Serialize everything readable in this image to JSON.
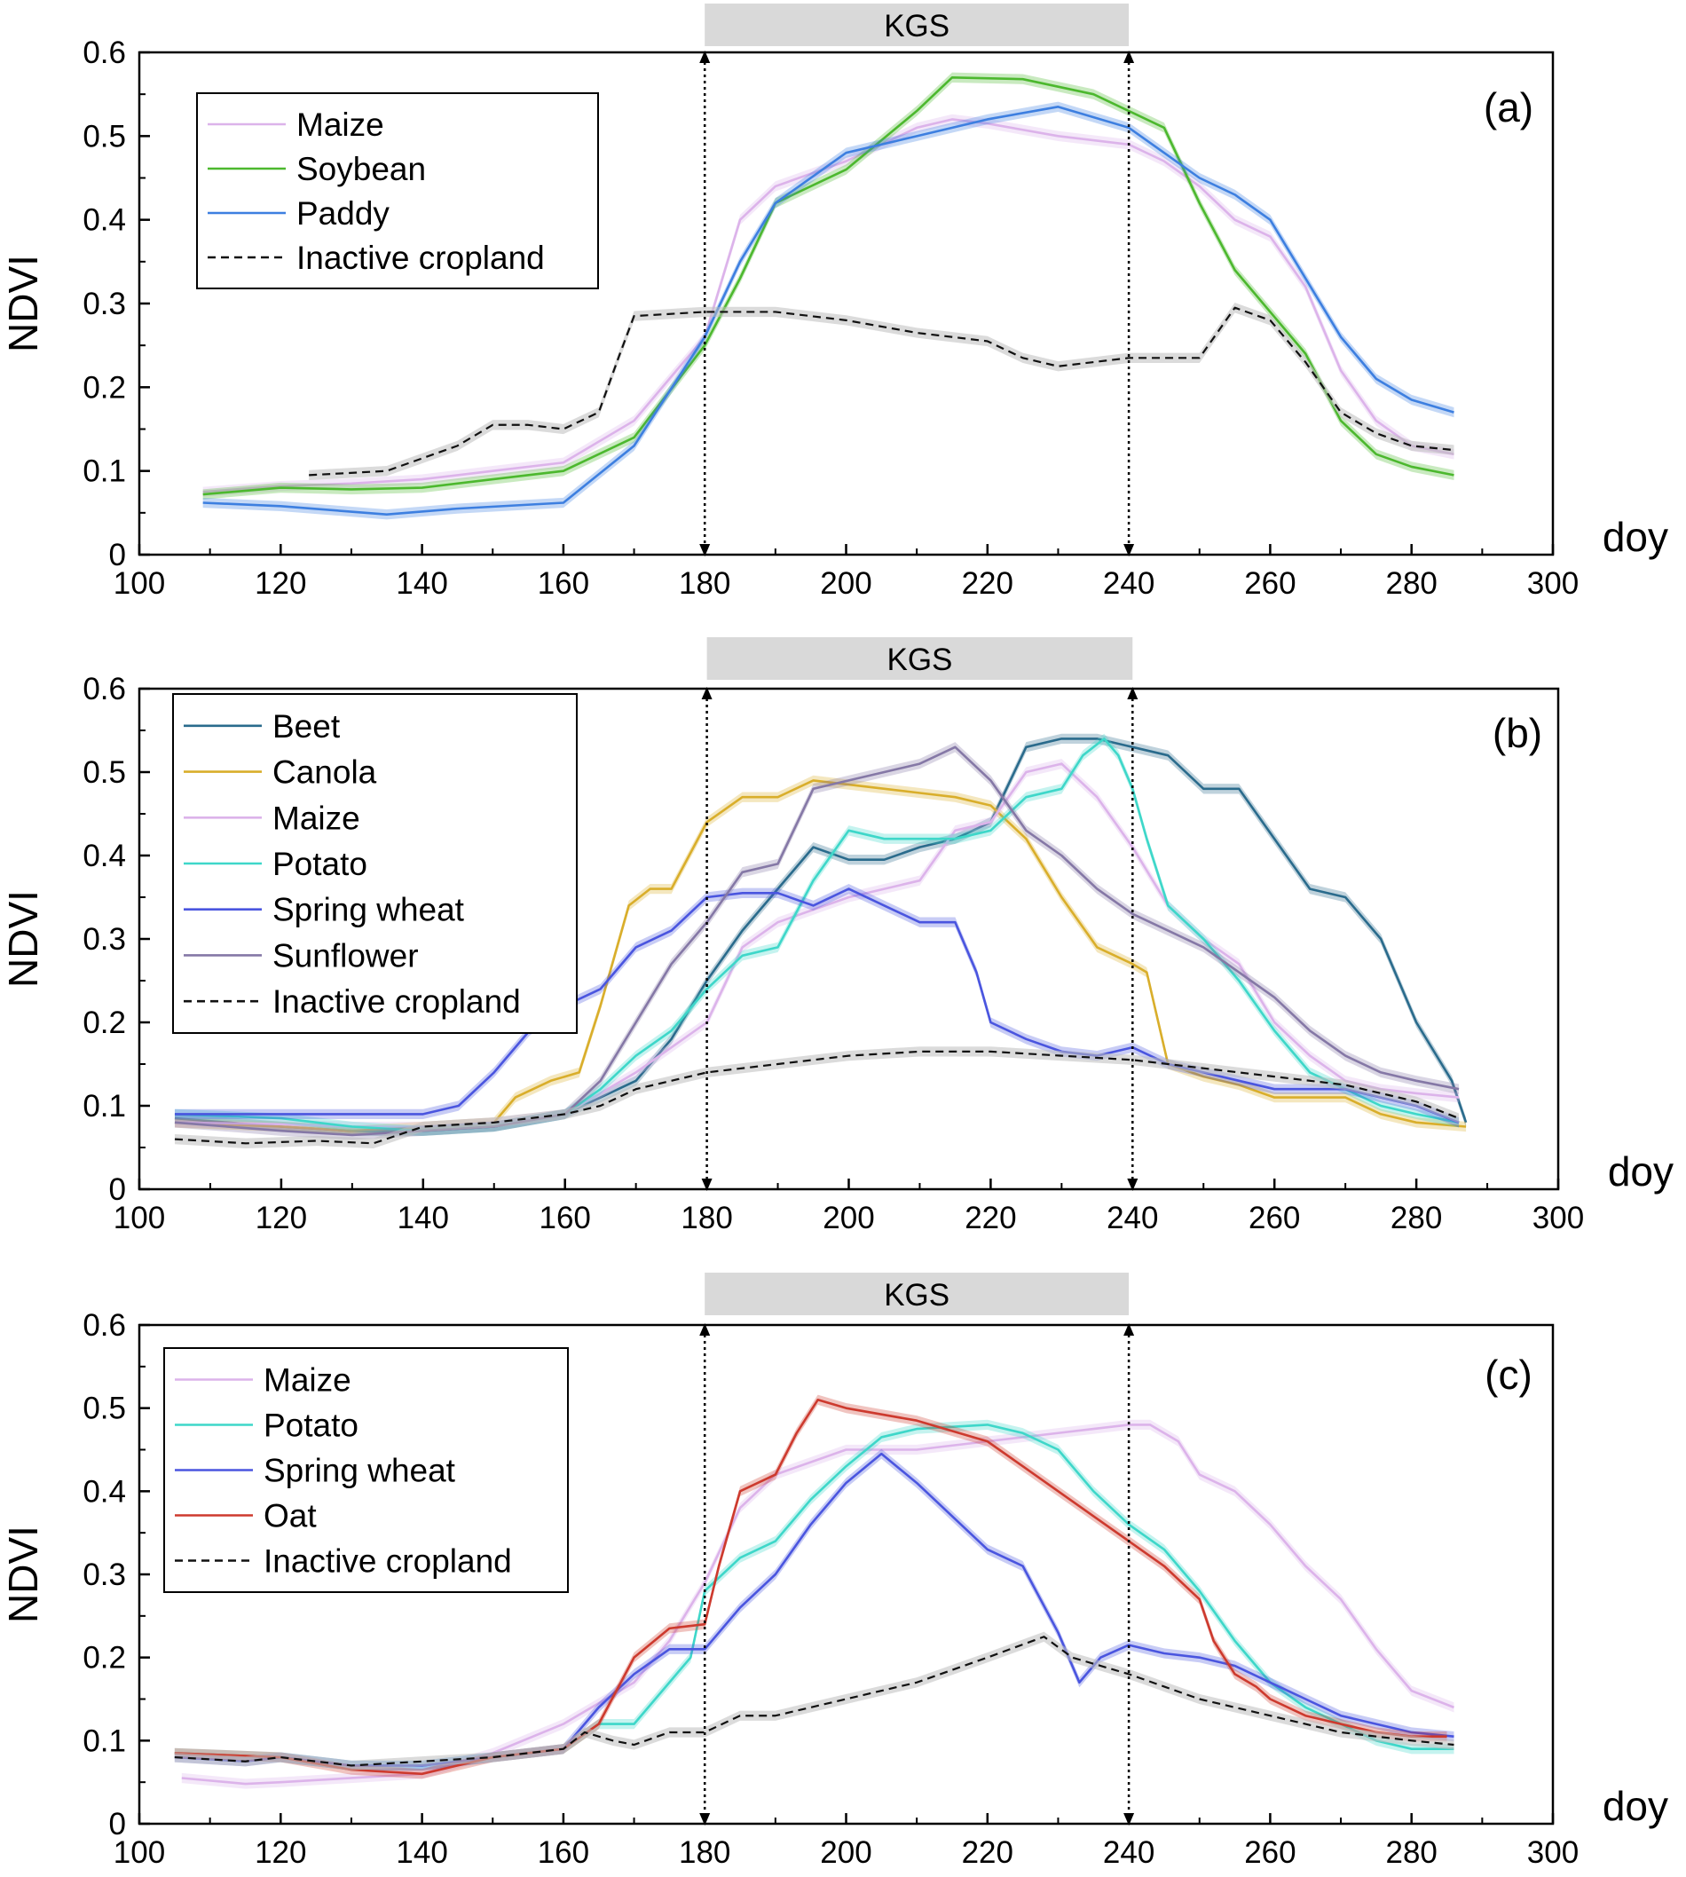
{
  "figure": {
    "xlabel": "doy",
    "ylabel": "NDVI",
    "kgs_label": "KGS",
    "kgs_range": [
      180,
      240
    ],
    "x_ticks": [
      100,
      120,
      140,
      160,
      180,
      200,
      220,
      240,
      260,
      280,
      300
    ],
    "y_ticks": [
      0,
      0.1,
      0.2,
      0.3,
      0.4,
      0.5,
      0.6
    ],
    "y_tick_labels": [
      "0",
      "0.1",
      "0.2",
      "0.3",
      "0.4",
      "0.5",
      "0.6"
    ],
    "colors": {
      "Maize": "#dcb3ea",
      "Soybean": "#4cb82e",
      "Paddy": "#3d7fe0",
      "Beet": "#2a6b8c",
      "Canola": "#d9ae2b",
      "Potato": "#3ed7c9",
      "Spring wheat": "#4a55df",
      "Sunflower": "#8578a6",
      "Oat": "#cd3a2e",
      "Inactive cropland": "#111111"
    }
  },
  "chart_data": [
    {
      "type": "line",
      "panel": "(a)",
      "xlabel": "doy",
      "ylabel": "NDVI",
      "xlim": [
        100,
        300
      ],
      "ylim": [
        0,
        0.6
      ],
      "legend": "top-left",
      "series": [
        {
          "name": "Maize",
          "x": [
            109,
            120,
            130,
            140,
            150,
            160,
            170,
            180,
            185,
            190,
            200,
            210,
            215,
            220,
            230,
            240,
            245,
            250,
            255,
            260,
            265,
            270,
            275,
            280,
            286
          ],
          "y": [
            0.075,
            0.082,
            0.085,
            0.09,
            0.1,
            0.11,
            0.16,
            0.26,
            0.4,
            0.44,
            0.47,
            0.51,
            0.52,
            0.515,
            0.5,
            0.49,
            0.47,
            0.44,
            0.4,
            0.38,
            0.32,
            0.22,
            0.16,
            0.13,
            0.12
          ]
        },
        {
          "name": "Soybean",
          "x": [
            109,
            120,
            130,
            140,
            150,
            160,
            170,
            180,
            185,
            190,
            200,
            210,
            215,
            225,
            235,
            240,
            245,
            250,
            255,
            260,
            265,
            270,
            275,
            280,
            286
          ],
          "y": [
            0.072,
            0.08,
            0.078,
            0.08,
            0.09,
            0.1,
            0.14,
            0.25,
            0.33,
            0.42,
            0.46,
            0.53,
            0.57,
            0.568,
            0.55,
            0.53,
            0.51,
            0.42,
            0.34,
            0.29,
            0.24,
            0.16,
            0.12,
            0.105,
            0.095
          ]
        },
        {
          "name": "Paddy",
          "x": [
            109,
            120,
            135,
            145,
            160,
            170,
            180,
            185,
            190,
            200,
            210,
            220,
            230,
            240,
            245,
            250,
            255,
            260,
            265,
            270,
            275,
            280,
            286
          ],
          "y": [
            0.062,
            0.058,
            0.048,
            0.055,
            0.062,
            0.13,
            0.26,
            0.35,
            0.42,
            0.48,
            0.5,
            0.52,
            0.535,
            0.51,
            0.48,
            0.45,
            0.43,
            0.4,
            0.33,
            0.26,
            0.21,
            0.185,
            0.17
          ]
        },
        {
          "name": "Inactive cropland",
          "x": [
            124,
            135,
            145,
            150,
            155,
            160,
            165,
            168,
            170,
            180,
            190,
            200,
            210,
            220,
            225,
            230,
            235,
            240,
            250,
            255,
            260,
            265,
            270,
            275,
            280,
            286
          ],
          "y": [
            0.095,
            0.1,
            0.13,
            0.155,
            0.155,
            0.15,
            0.17,
            0.24,
            0.285,
            0.29,
            0.29,
            0.28,
            0.265,
            0.255,
            0.235,
            0.225,
            0.23,
            0.235,
            0.235,
            0.295,
            0.28,
            0.23,
            0.17,
            0.145,
            0.13,
            0.125
          ]
        }
      ]
    },
    {
      "type": "line",
      "panel": "(b)",
      "xlabel": "doy",
      "ylabel": "NDVI",
      "xlim": [
        100,
        300
      ],
      "ylim": [
        0,
        0.6
      ],
      "legend": "top-left",
      "series": [
        {
          "name": "Beet",
          "x": [
            105,
            120,
            130,
            140,
            150,
            160,
            165,
            170,
            175,
            180,
            185,
            190,
            195,
            200,
            205,
            210,
            215,
            220,
            225,
            230,
            235,
            240,
            245,
            250,
            255,
            260,
            265,
            270,
            275,
            280,
            285,
            287
          ],
          "y": [
            0.085,
            0.075,
            0.07,
            0.07,
            0.075,
            0.09,
            0.11,
            0.13,
            0.18,
            0.25,
            0.31,
            0.36,
            0.41,
            0.395,
            0.395,
            0.41,
            0.42,
            0.44,
            0.53,
            0.54,
            0.54,
            0.53,
            0.52,
            0.48,
            0.48,
            0.42,
            0.36,
            0.35,
            0.3,
            0.2,
            0.13,
            0.08
          ]
        },
        {
          "name": "Canola",
          "x": [
            105,
            120,
            130,
            140,
            150,
            153,
            158,
            162,
            165,
            169,
            172,
            175,
            180,
            185,
            190,
            195,
            200,
            210,
            215,
            220,
            225,
            230,
            235,
            240,
            242,
            245,
            250,
            255,
            260,
            265,
            270,
            275,
            280,
            287
          ],
          "y": [
            0.08,
            0.075,
            0.07,
            0.075,
            0.08,
            0.11,
            0.13,
            0.14,
            0.22,
            0.34,
            0.36,
            0.36,
            0.44,
            0.47,
            0.47,
            0.49,
            0.485,
            0.475,
            0.47,
            0.46,
            0.42,
            0.35,
            0.29,
            0.27,
            0.26,
            0.15,
            0.135,
            0.125,
            0.11,
            0.11,
            0.11,
            0.09,
            0.08,
            0.075
          ]
        },
        {
          "name": "Maize",
          "x": [
            105,
            120,
            130,
            140,
            150,
            160,
            170,
            175,
            180,
            185,
            190,
            200,
            210,
            215,
            220,
            225,
            230,
            235,
            240,
            245,
            250,
            255,
            260,
            265,
            270,
            275,
            280,
            286
          ],
          "y": [
            0.08,
            0.078,
            0.075,
            0.075,
            0.08,
            0.09,
            0.14,
            0.17,
            0.2,
            0.29,
            0.32,
            0.35,
            0.37,
            0.43,
            0.44,
            0.5,
            0.51,
            0.47,
            0.41,
            0.34,
            0.3,
            0.27,
            0.2,
            0.16,
            0.13,
            0.12,
            0.115,
            0.11
          ]
        },
        {
          "name": "Potato",
          "x": [
            105,
            120,
            130,
            140,
            150,
            160,
            165,
            170,
            175,
            180,
            185,
            190,
            195,
            200,
            205,
            210,
            215,
            220,
            225,
            230,
            233,
            236,
            238,
            240,
            242,
            245,
            250,
            255,
            260,
            265,
            270,
            275,
            280,
            286
          ],
          "y": [
            0.09,
            0.085,
            0.075,
            0.07,
            0.075,
            0.09,
            0.12,
            0.16,
            0.19,
            0.24,
            0.28,
            0.29,
            0.37,
            0.43,
            0.42,
            0.42,
            0.42,
            0.43,
            0.47,
            0.48,
            0.52,
            0.54,
            0.52,
            0.48,
            0.42,
            0.34,
            0.3,
            0.25,
            0.19,
            0.14,
            0.12,
            0.1,
            0.09,
            0.08
          ]
        },
        {
          "name": "Spring wheat",
          "x": [
            105,
            120,
            130,
            140,
            145,
            150,
            155,
            160,
            165,
            170,
            175,
            180,
            185,
            190,
            195,
            200,
            205,
            210,
            215,
            218,
            220,
            225,
            230,
            235,
            240,
            245,
            250,
            255,
            260,
            265,
            270,
            275,
            280,
            286
          ],
          "y": [
            0.09,
            0.09,
            0.09,
            0.09,
            0.1,
            0.14,
            0.19,
            0.22,
            0.24,
            0.29,
            0.31,
            0.35,
            0.355,
            0.355,
            0.34,
            0.36,
            0.34,
            0.32,
            0.32,
            0.26,
            0.2,
            0.18,
            0.165,
            0.16,
            0.17,
            0.15,
            0.14,
            0.13,
            0.12,
            0.12,
            0.12,
            0.11,
            0.1,
            0.08
          ]
        },
        {
          "name": "Sunflower",
          "x": [
            105,
            120,
            130,
            140,
            150,
            160,
            165,
            170,
            175,
            180,
            185,
            190,
            195,
            200,
            205,
            210,
            215,
            220,
            225,
            230,
            235,
            240,
            245,
            250,
            255,
            260,
            265,
            270,
            275,
            280,
            286
          ],
          "y": [
            0.08,
            0.07,
            0.065,
            0.07,
            0.075,
            0.09,
            0.13,
            0.2,
            0.27,
            0.32,
            0.38,
            0.39,
            0.48,
            0.49,
            0.5,
            0.51,
            0.53,
            0.49,
            0.43,
            0.4,
            0.36,
            0.33,
            0.31,
            0.29,
            0.26,
            0.23,
            0.19,
            0.16,
            0.14,
            0.13,
            0.12
          ]
        },
        {
          "name": "Inactive cropland",
          "x": [
            105,
            115,
            125,
            133,
            140,
            150,
            155,
            160,
            165,
            170,
            175,
            180,
            190,
            200,
            210,
            220,
            230,
            240,
            250,
            260,
            270,
            280,
            286
          ],
          "y": [
            0.06,
            0.055,
            0.058,
            0.055,
            0.075,
            0.08,
            0.085,
            0.09,
            0.1,
            0.12,
            0.13,
            0.14,
            0.15,
            0.16,
            0.165,
            0.165,
            0.16,
            0.155,
            0.145,
            0.135,
            0.125,
            0.105,
            0.085
          ]
        }
      ]
    },
    {
      "type": "line",
      "panel": "(c)",
      "xlabel": "doy",
      "ylabel": "NDVI",
      "xlim": [
        100,
        300
      ],
      "ylim": [
        0,
        0.6
      ],
      "legend": "top-left",
      "series": [
        {
          "name": "Maize",
          "x": [
            106,
            115,
            120,
            130,
            140,
            150,
            160,
            170,
            175,
            180,
            185,
            190,
            200,
            210,
            220,
            230,
            235,
            240,
            243,
            247,
            250,
            255,
            260,
            265,
            270,
            275,
            280,
            286
          ],
          "y": [
            0.055,
            0.048,
            0.05,
            0.055,
            0.06,
            0.085,
            0.12,
            0.17,
            0.22,
            0.29,
            0.38,
            0.42,
            0.45,
            0.45,
            0.46,
            0.47,
            0.475,
            0.48,
            0.48,
            0.46,
            0.42,
            0.4,
            0.36,
            0.31,
            0.27,
            0.21,
            0.16,
            0.14
          ]
        },
        {
          "name": "Potato",
          "x": [
            105,
            120,
            130,
            140,
            150,
            160,
            165,
            170,
            175,
            178,
            180,
            185,
            190,
            195,
            200,
            205,
            210,
            220,
            225,
            230,
            235,
            240,
            245,
            250,
            255,
            260,
            265,
            270,
            275,
            280,
            286
          ],
          "y": [
            0.085,
            0.08,
            0.07,
            0.07,
            0.08,
            0.09,
            0.12,
            0.12,
            0.17,
            0.2,
            0.28,
            0.32,
            0.34,
            0.39,
            0.43,
            0.465,
            0.475,
            0.48,
            0.47,
            0.45,
            0.4,
            0.36,
            0.33,
            0.28,
            0.22,
            0.17,
            0.14,
            0.12,
            0.1,
            0.09,
            0.09
          ]
        },
        {
          "name": "Spring wheat",
          "x": [
            105,
            115,
            120,
            130,
            140,
            150,
            160,
            165,
            170,
            175,
            180,
            185,
            190,
            195,
            200,
            205,
            210,
            215,
            220,
            225,
            230,
            233,
            236,
            240,
            245,
            250,
            255,
            260,
            265,
            270,
            275,
            280,
            286
          ],
          "y": [
            0.08,
            0.075,
            0.08,
            0.07,
            0.07,
            0.08,
            0.09,
            0.14,
            0.18,
            0.21,
            0.21,
            0.26,
            0.3,
            0.36,
            0.41,
            0.445,
            0.41,
            0.37,
            0.33,
            0.31,
            0.23,
            0.17,
            0.2,
            0.215,
            0.205,
            0.2,
            0.19,
            0.17,
            0.15,
            0.13,
            0.12,
            0.11,
            0.105
          ]
        },
        {
          "name": "Oat",
          "x": [
            105,
            120,
            130,
            140,
            150,
            160,
            165,
            170,
            175,
            180,
            182,
            185,
            190,
            193,
            196,
            200,
            210,
            220,
            225,
            230,
            235,
            240,
            245,
            250,
            252,
            255,
            258,
            260,
            265,
            270,
            275,
            280,
            285
          ],
          "y": [
            0.085,
            0.08,
            0.065,
            0.06,
            0.08,
            0.09,
            0.12,
            0.2,
            0.235,
            0.24,
            0.31,
            0.4,
            0.42,
            0.47,
            0.51,
            0.5,
            0.485,
            0.46,
            0.43,
            0.4,
            0.37,
            0.34,
            0.31,
            0.27,
            0.22,
            0.18,
            0.165,
            0.15,
            0.13,
            0.12,
            0.11,
            0.105,
            0.105
          ]
        },
        {
          "name": "Inactive cropland",
          "x": [
            105,
            115,
            120,
            130,
            140,
            150,
            160,
            163,
            167,
            170,
            175,
            180,
            185,
            190,
            200,
            210,
            220,
            228,
            232,
            240,
            245,
            250,
            260,
            270,
            280,
            286
          ],
          "y": [
            0.08,
            0.075,
            0.08,
            0.07,
            0.075,
            0.08,
            0.09,
            0.11,
            0.1,
            0.095,
            0.11,
            0.11,
            0.13,
            0.13,
            0.15,
            0.17,
            0.2,
            0.225,
            0.2,
            0.18,
            0.165,
            0.15,
            0.13,
            0.11,
            0.1,
            0.095
          ]
        }
      ]
    }
  ]
}
